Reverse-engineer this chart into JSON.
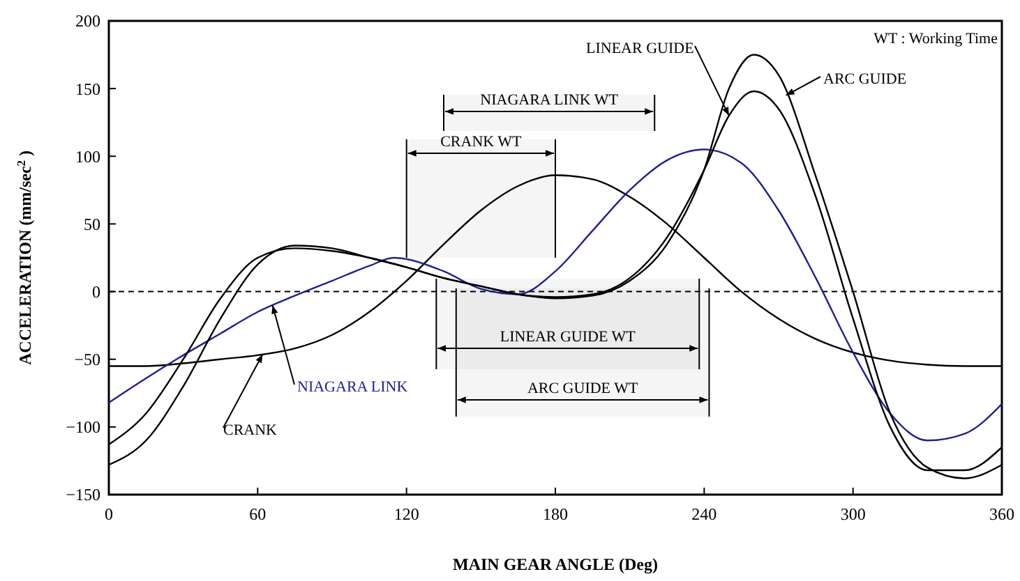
{
  "chart_data": {
    "type": "line",
    "xlabel": "MAIN GEAR ANGLE (Deg)",
    "ylabel": "ACCELERATION (mm/sec$^{2}$ )",
    "xlim": [
      0,
      360
    ],
    "xticks": [
      0,
      60,
      120,
      180,
      240,
      300,
      360
    ],
    "ylim": [
      -150,
      200
    ],
    "yticks": [
      -150,
      -100,
      -50,
      0,
      50,
      100,
      150,
      200
    ],
    "grid": false,
    "marker": "none",
    "line_style": "solid",
    "annotations": [
      "WT : Working Time"
    ],
    "ref_lines": [
      {
        "axis": "y",
        "value": 0,
        "line_style": "dashed",
        "color": "#000000"
      }
    ],
    "bands": [
      {
        "axis": "x",
        "from": 120,
        "to": 180,
        "label": "CRANK WT"
      },
      {
        "axis": "x",
        "from": 135,
        "to": 220,
        "label": "NIAGARA LINK WT"
      },
      {
        "axis": "x",
        "from": 132,
        "to": 238,
        "label": "LINEAR GUIDE WT"
      },
      {
        "axis": "x",
        "from": 140,
        "to": 242,
        "label": "ARC GUIDE WT"
      }
    ],
    "series": [
      {
        "name": "CRANK",
        "color": "#000000",
        "x": [
          0,
          15,
          30,
          45,
          60,
          75,
          90,
          105,
          120,
          135,
          150,
          165,
          180,
          195,
          210,
          225,
          240,
          255,
          270,
          285,
          300,
          315,
          330,
          345,
          360
        ],
        "values": [
          -55,
          -55,
          -53,
          -50,
          -47,
          -42,
          -32,
          -15,
          8,
          35,
          60,
          78,
          86,
          83,
          70,
          50,
          25,
          0,
          -20,
          -35,
          -45,
          -51,
          -54,
          -55,
          -55
        ]
      },
      {
        "name": "NIAGARA LINK",
        "color": "#1f1f9a",
        "x": [
          0,
          15,
          30,
          45,
          60,
          75,
          90,
          105,
          115,
          120,
          135,
          150,
          165,
          180,
          195,
          210,
          225,
          240,
          255,
          270,
          285,
          300,
          315,
          330,
          345,
          360
        ],
        "values": [
          -82,
          -64,
          -47,
          -31,
          -15,
          -3,
          8,
          19,
          25,
          24,
          15,
          2,
          -2,
          15,
          45,
          75,
          97,
          105,
          95,
          60,
          10,
          -45,
          -90,
          -110,
          -105,
          -83
        ]
      },
      {
        "name": "LINEAR GUIDE",
        "color": "#000000",
        "x": [
          0,
          15,
          30,
          45,
          60,
          75,
          90,
          105,
          120,
          135,
          150,
          165,
          180,
          195,
          210,
          225,
          240,
          250,
          260,
          270,
          285,
          300,
          315,
          330,
          345,
          360
        ],
        "values": [
          -113,
          -90,
          -50,
          -5,
          25,
          32,
          30,
          25,
          18,
          10,
          4,
          -2,
          -4,
          -2,
          10,
          40,
          90,
          130,
          148,
          135,
          70,
          -20,
          -100,
          -132,
          -132,
          -115
        ]
      },
      {
        "name": "ARC GUIDE",
        "color": "#000000",
        "x": [
          0,
          15,
          30,
          45,
          60,
          75,
          90,
          105,
          120,
          135,
          150,
          165,
          180,
          195,
          210,
          225,
          240,
          250,
          260,
          270,
          285,
          300,
          315,
          330,
          345,
          360
        ],
        "values": [
          -128,
          -110,
          -70,
          -20,
          20,
          34,
          32,
          25,
          18,
          10,
          4,
          -2,
          -5,
          -3,
          8,
          35,
          90,
          150,
          175,
          160,
          85,
          0,
          -90,
          -130,
          -138,
          -128
        ]
      }
    ]
  }
}
